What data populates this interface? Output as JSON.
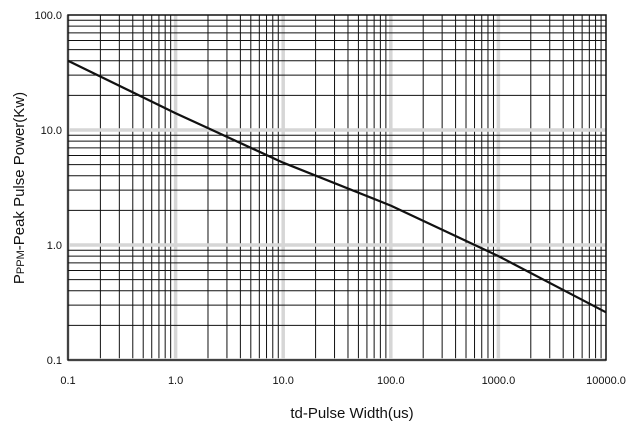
{
  "chart_data": {
    "type": "line",
    "title": "",
    "xlabel": "td-Pulse Width(us)",
    "ylabel": "PPPM-Peak Pulse Power(Kw)",
    "ylabel_parts": {
      "main": "P",
      "subscript": "PPM",
      "rest": "-Peak Pulse Power(Kw)"
    },
    "x_scale": "log",
    "y_scale": "log",
    "xlim": [
      0.1,
      10000
    ],
    "ylim": [
      0.1,
      100
    ],
    "grid": true,
    "x_ticks": [
      {
        "value": 0.1,
        "label": "0.1"
      },
      {
        "value": 1,
        "label": "1.0"
      },
      {
        "value": 10,
        "label": "10.0"
      },
      {
        "value": 100,
        "label": "100.0"
      },
      {
        "value": 1000,
        "label": "1000.0"
      },
      {
        "value": 10000,
        "label": "10000.0"
      }
    ],
    "y_ticks": [
      {
        "value": 0.1,
        "label": "0.1"
      },
      {
        "value": 1,
        "label": "1.0"
      },
      {
        "value": 10,
        "label": "10.0"
      },
      {
        "value": 100,
        "label": "100.0"
      }
    ],
    "series": [
      {
        "x": [
          0.1,
          1,
          10,
          100,
          1000,
          10000
        ],
        "y": [
          40,
          14,
          5.2,
          2.2,
          0.8,
          0.26
        ]
      }
    ]
  }
}
